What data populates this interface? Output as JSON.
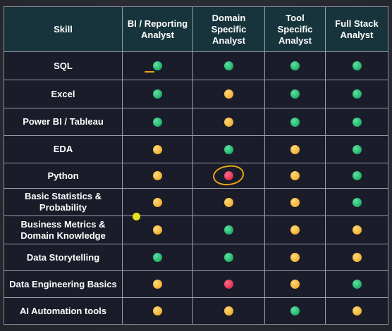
{
  "table": {
    "headers": [
      "Skill",
      "BI / Reporting Analyst",
      "Domain Specific Analyst",
      "Tool Specific Analyst",
      "Full Stack Analyst"
    ],
    "rows": [
      {
        "skill": "SQL",
        "levels": [
          "green",
          "green",
          "green",
          "green"
        ]
      },
      {
        "skill": "Excel",
        "levels": [
          "green",
          "yellow",
          "green",
          "green"
        ]
      },
      {
        "skill": "Power BI / Tableau",
        "levels": [
          "green",
          "yellow",
          "green",
          "green"
        ]
      },
      {
        "skill": "EDA",
        "levels": [
          "yellow",
          "green",
          "yellow",
          "green"
        ]
      },
      {
        "skill": "Python",
        "levels": [
          "yellow",
          "red",
          "yellow",
          "green"
        ]
      },
      {
        "skill": "Basic Statistics & Probability",
        "levels": [
          "yellow",
          "yellow",
          "yellow",
          "green"
        ]
      },
      {
        "skill": "Business Metrics & Domain Knowledge",
        "levels": [
          "yellow",
          "green",
          "yellow",
          "yellow"
        ]
      },
      {
        "skill": "Data Storytelling",
        "levels": [
          "green",
          "green",
          "yellow",
          "yellow"
        ]
      },
      {
        "skill": "Data Engineering Basics",
        "levels": [
          "yellow",
          "red",
          "yellow",
          "green"
        ]
      },
      {
        "skill": "AI Automation tools",
        "levels": [
          "yellow",
          "yellow",
          "green",
          "yellow"
        ]
      }
    ]
  },
  "colors": {
    "green": "#1fb36b",
    "yellow": "#f2b233",
    "red": "#e0304f",
    "annotation": "#e6a817",
    "pointer": "#e4e21a"
  }
}
